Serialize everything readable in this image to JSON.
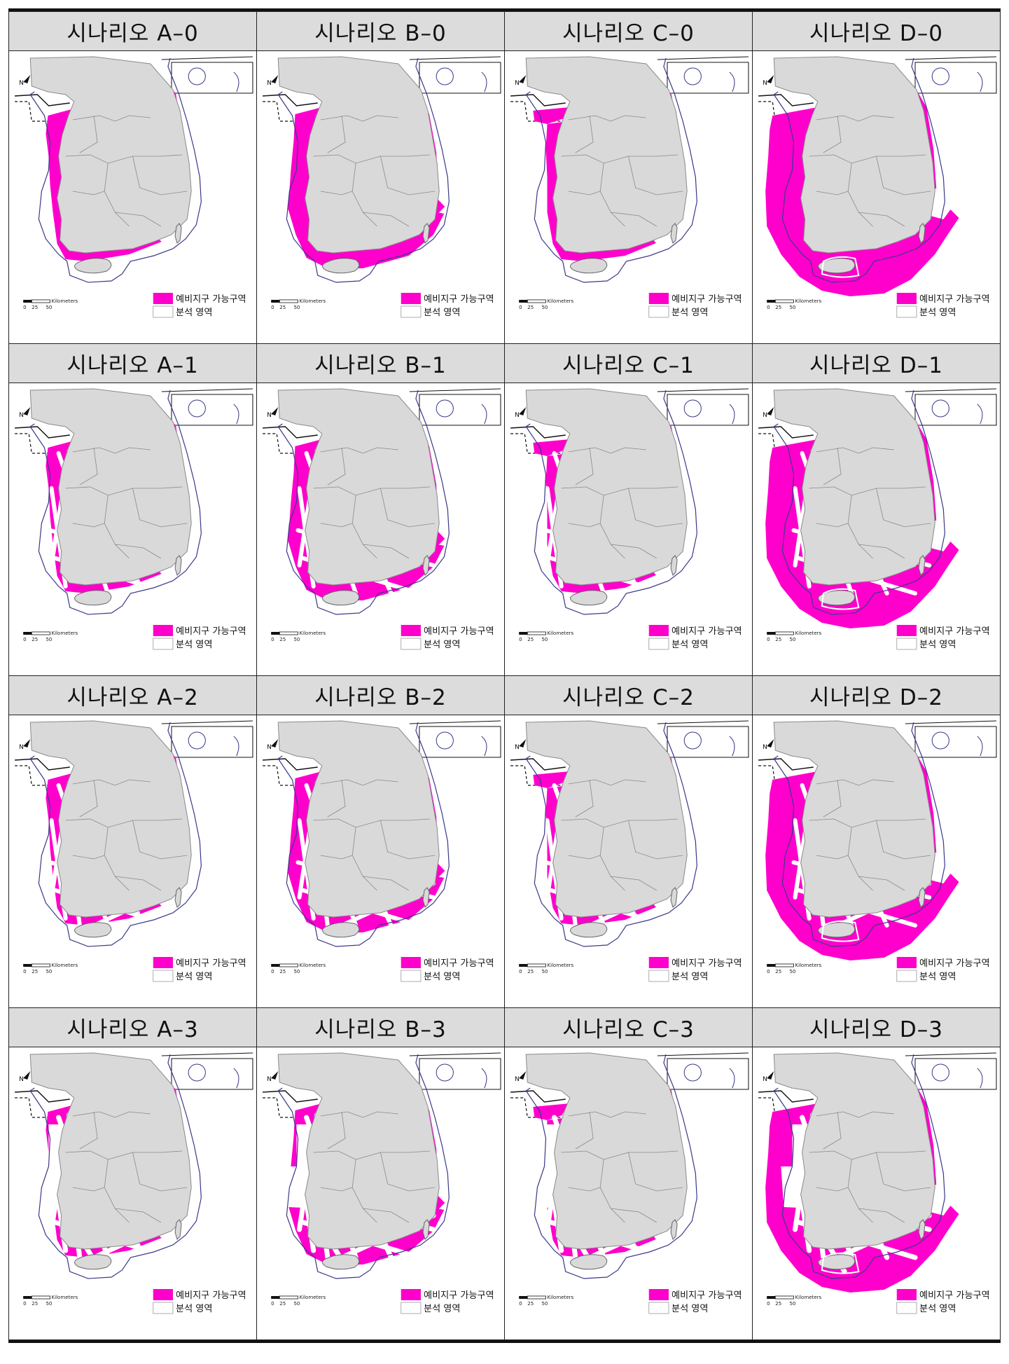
{
  "legend": {
    "candidate_label": "예비지구 가능구역",
    "analysis_label": "분석 영역",
    "candidate_color": "#ff00cc",
    "land_color": "#d9d9d9",
    "boundary_color": "#3a3a8a"
  },
  "scale_bar": {
    "unit": "Kilometers",
    "ticks": [
      "0",
      "25",
      "50"
    ]
  },
  "north_label": "N",
  "rows": [
    {
      "scenarios": [
        {
          "title": "시나리오 A–0",
          "family": "A",
          "level": 0
        },
        {
          "title": "시나리오 B–0",
          "family": "B",
          "level": 0
        },
        {
          "title": "시나리오 C–0",
          "family": "C",
          "level": 0
        },
        {
          "title": "시나리오 D–0",
          "family": "D",
          "level": 0
        }
      ]
    },
    {
      "scenarios": [
        {
          "title": "시나리오 A–1",
          "family": "A",
          "level": 1
        },
        {
          "title": "시나리오 B–1",
          "family": "B",
          "level": 1
        },
        {
          "title": "시나리오 C–1",
          "family": "C",
          "level": 1
        },
        {
          "title": "시나리오 D–1",
          "family": "D",
          "level": 1
        }
      ]
    },
    {
      "scenarios": [
        {
          "title": "시나리오 A–2",
          "family": "A",
          "level": 2
        },
        {
          "title": "시나리오 B–2",
          "family": "B",
          "level": 2
        },
        {
          "title": "시나리오 C–2",
          "family": "C",
          "level": 2
        },
        {
          "title": "시나리오 D–2",
          "family": "D",
          "level": 2
        }
      ]
    },
    {
      "scenarios": [
        {
          "title": "시나리오 A–3",
          "family": "A",
          "level": 3
        },
        {
          "title": "시나리오 B–3",
          "family": "B",
          "level": 3
        },
        {
          "title": "시나리오 C–3",
          "family": "C",
          "level": 3
        },
        {
          "title": "시나리오 D–3",
          "family": "D",
          "level": 3
        }
      ]
    }
  ]
}
